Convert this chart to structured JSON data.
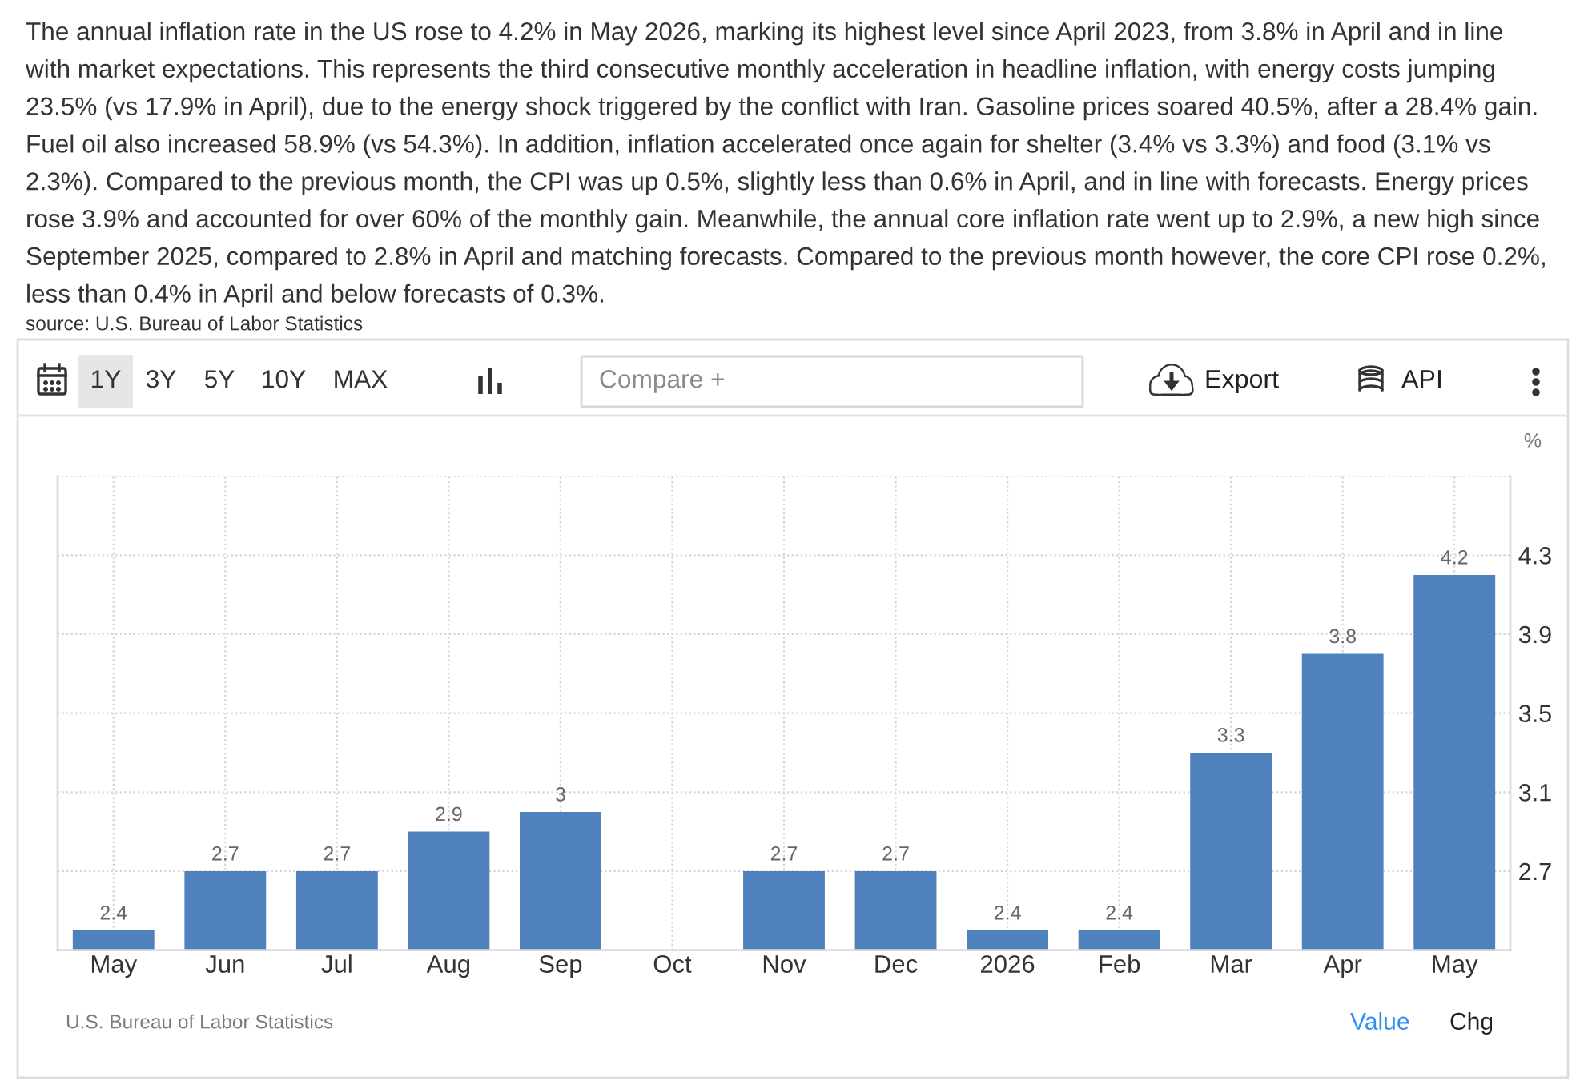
{
  "chart_data": {
    "type": "bar",
    "subtitle": "The annual inflation rate in the US rose to 4.2% in May 2026, marking its highest level since April 2023, from 3.8% in April and in line\nwith market expectations. This represents the third consecutive monthly acceleration in headline inflation, with energy costs jumping\n23.5% (vs 17.9% in April), due to the energy shock triggered by the conflict with Iran. Gasoline prices soared 40.5%, after a 28.4% gain.\nFuel oil also increased 58.9% (vs 54.3%). In addition, inflation accelerated once again for shelter (3.4% vs 3.3%) and food (3.1% vs\n2.3%). Compared to the previous month, the CPI was up 0.5%, slightly less than 0.6% in April, and in line with forecasts. Energy prices\nrose 3.9% and accounted for over 60% of the monthly gain. Meanwhile, the annual core inflation rate went up to 2.9%, a new high since\nSeptember 2025, compared to 2.8% in April and matching forecasts. Compared to the previous month however, the core CPI rose 0.2%,\nless than 0.4% in April and below forecasts of 0.3%.",
    "ylabel": "%",
    "annotations": [
      "source: U.S. Bureau of Labor Statistics",
      "1Y",
      "3Y",
      "5Y",
      "10Y",
      "MAX",
      "Compare +",
      "Export",
      "API",
      "U.S. Bureau of Labor Statistics",
      "Value",
      "Chg"
    ],
    "categories": [
      "May",
      "Jun",
      "Jul",
      "Aug",
      "Sep",
      "Oct",
      "Nov",
      "Dec",
      "2026",
      "Feb",
      "Mar",
      "Apr",
      "May"
    ],
    "values": [
      2.4,
      2.7,
      2.7,
      2.9,
      3,
      null,
      2.7,
      2.7,
      2.4,
      2.4,
      3.3,
      3.8,
      4.2
    ],
    "color": "#4f81bd",
    "data_labels": true,
    "ylim": [
      2.3,
      4.7
    ],
    "yticks": [
      2.7,
      3.1,
      3.5,
      3.9,
      4.3,
      {
        "value": 4.7,
        "label": null
      }
    ],
    "grid": true
  }
}
